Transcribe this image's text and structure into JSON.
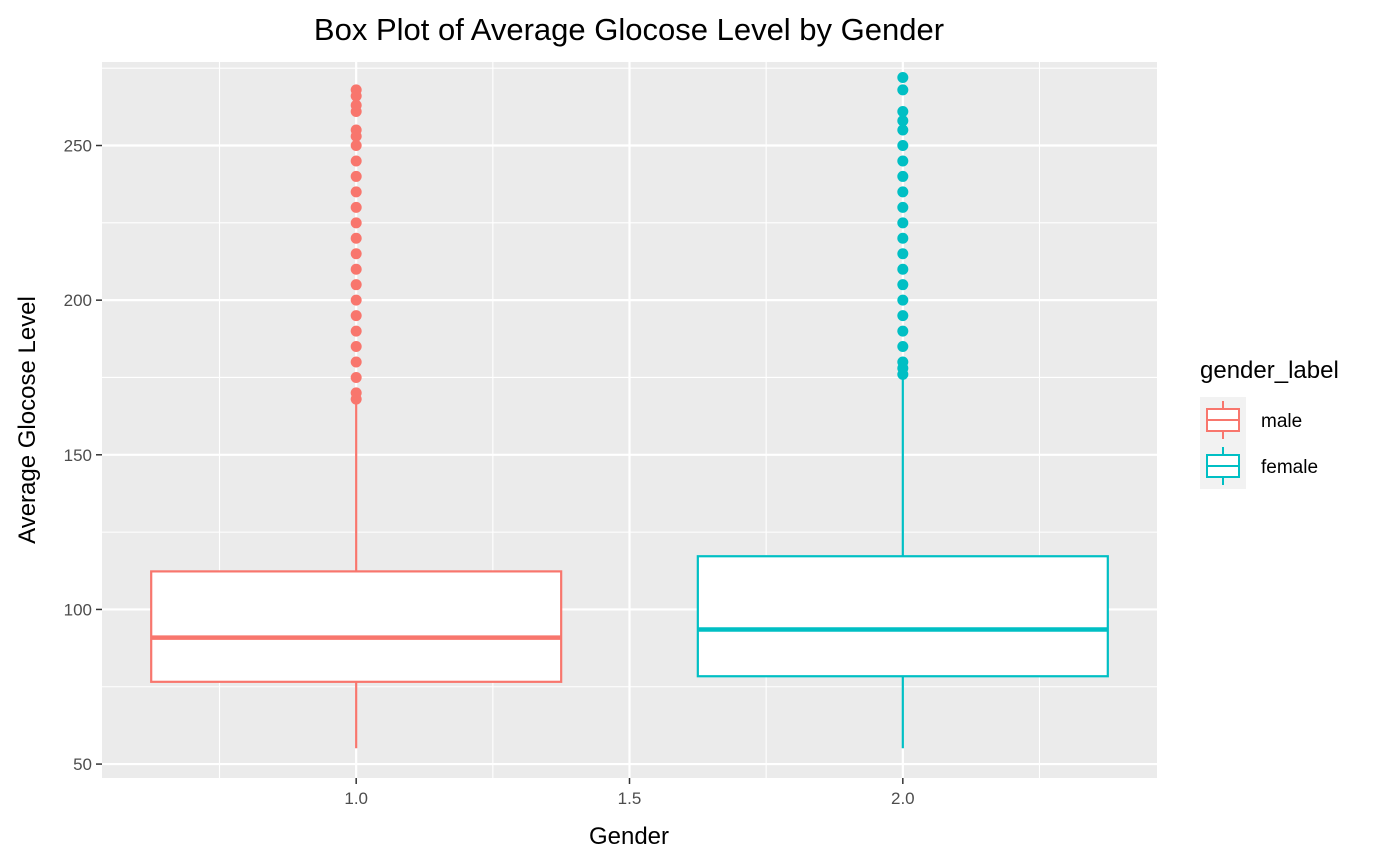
{
  "chart_data": {
    "type": "box",
    "title": "Box Plot of Average Glocose Level by Gender",
    "xlabel": "Gender",
    "ylabel": "Average Glocose Level",
    "xlim": [
      0.535,
      2.465
    ],
    "ylim": [
      45.5,
      277
    ],
    "x_ticks": [
      "1.0",
      "1.5",
      "2.0"
    ],
    "x_tick_values": [
      1.0,
      1.5,
      2.0
    ],
    "y_ticks": [
      "50",
      "100",
      "150",
      "200",
      "250"
    ],
    "y_tick_values": [
      50,
      100,
      150,
      200,
      250
    ],
    "grid": true,
    "legend": {
      "title": "gender_label",
      "position": "right"
    },
    "series": [
      {
        "name": "male",
        "x": 1.0,
        "color": "#F8766D",
        "whisker_low": 55.1,
        "q1": 76.6,
        "median": 90.9,
        "q3": 112.3,
        "whisker_high": 167.8,
        "outliers": [
          168,
          170,
          175,
          180,
          185,
          190,
          195,
          200,
          205,
          210,
          215,
          220,
          225,
          230,
          235,
          240,
          245,
          250,
          253,
          255,
          261,
          263,
          266,
          268
        ]
      },
      {
        "name": "female",
        "x": 2.0,
        "color": "#00BFC4",
        "whisker_low": 55.1,
        "q1": 78.4,
        "median": 93.5,
        "q3": 117.2,
        "whisker_high": 175.0,
        "outliers": [
          176,
          178,
          180,
          185,
          190,
          195,
          200,
          205,
          210,
          215,
          220,
          225,
          230,
          235,
          240,
          245,
          250,
          255,
          258,
          261,
          268,
          272
        ]
      }
    ]
  }
}
